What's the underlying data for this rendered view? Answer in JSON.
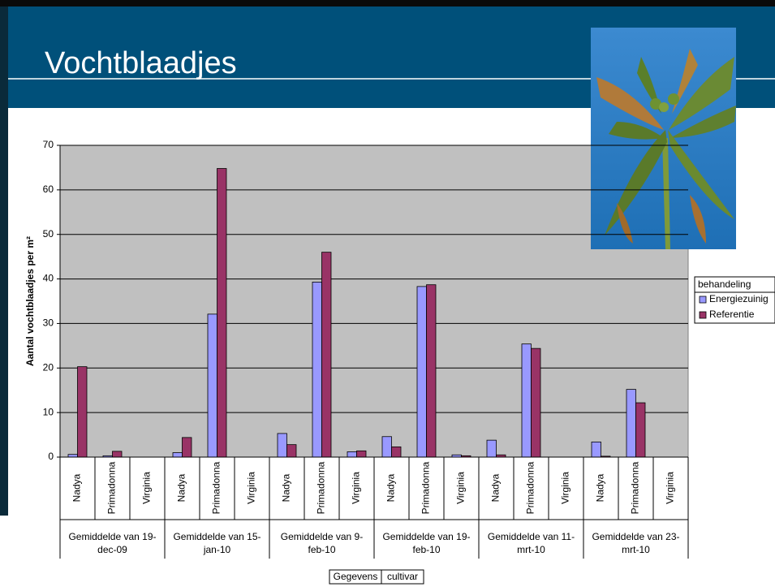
{
  "slide_title": "Vochtblaadjes",
  "chart_data": {
    "type": "bar",
    "y_label": "Aantal vochtblaadjes per m²",
    "categories": [
      "Nadya",
      "Primadonna",
      "Virginia",
      "Nadya",
      "Primadonna",
      "Virginia",
      "Nadya",
      "Primadonna",
      "Virginia",
      "Nadya",
      "Primadonna",
      "Virginia",
      "Nadya",
      "Primadonna",
      "Virginia",
      "Nadya",
      "Primadonna",
      "Virginia"
    ],
    "group_labels": [
      [
        "Gemiddelde van 19-",
        "dec-09"
      ],
      [
        "Gemiddelde van 15-",
        "jan-10"
      ],
      [
        "Gemiddelde van 9-",
        "feb-10"
      ],
      [
        "Gemiddelde van 19-",
        "feb-10"
      ],
      [
        "Gemiddelde van 11-",
        "mrt-10"
      ],
      [
        "Gemiddelde van 23-",
        "mrt-10"
      ]
    ],
    "series": [
      {
        "name": "Energiezuinig",
        "color": "#9999ff",
        "values": [
          0.6,
          0.3,
          0,
          1.0,
          32.1,
          0,
          5.3,
          39.3,
          1.2,
          4.6,
          38.3,
          0.5,
          3.8,
          25.4,
          0,
          3.4,
          15.2,
          0
        ]
      },
      {
        "name": "Referentie",
        "color": "#993366",
        "values": [
          20.3,
          1.3,
          0,
          4.4,
          64.8,
          0,
          2.8,
          46.0,
          1.4,
          2.3,
          38.7,
          0.3,
          0.5,
          24.4,
          0,
          0.2,
          12.2,
          0
        ]
      }
    ],
    "legend_title": "behandeling",
    "field_buttons": [
      "Gegevens",
      "cultivar"
    ],
    "ylim": [
      0,
      70
    ],
    "yticks": [
      0,
      10,
      20,
      30,
      40,
      50,
      60,
      70
    ],
    "grid": true
  }
}
